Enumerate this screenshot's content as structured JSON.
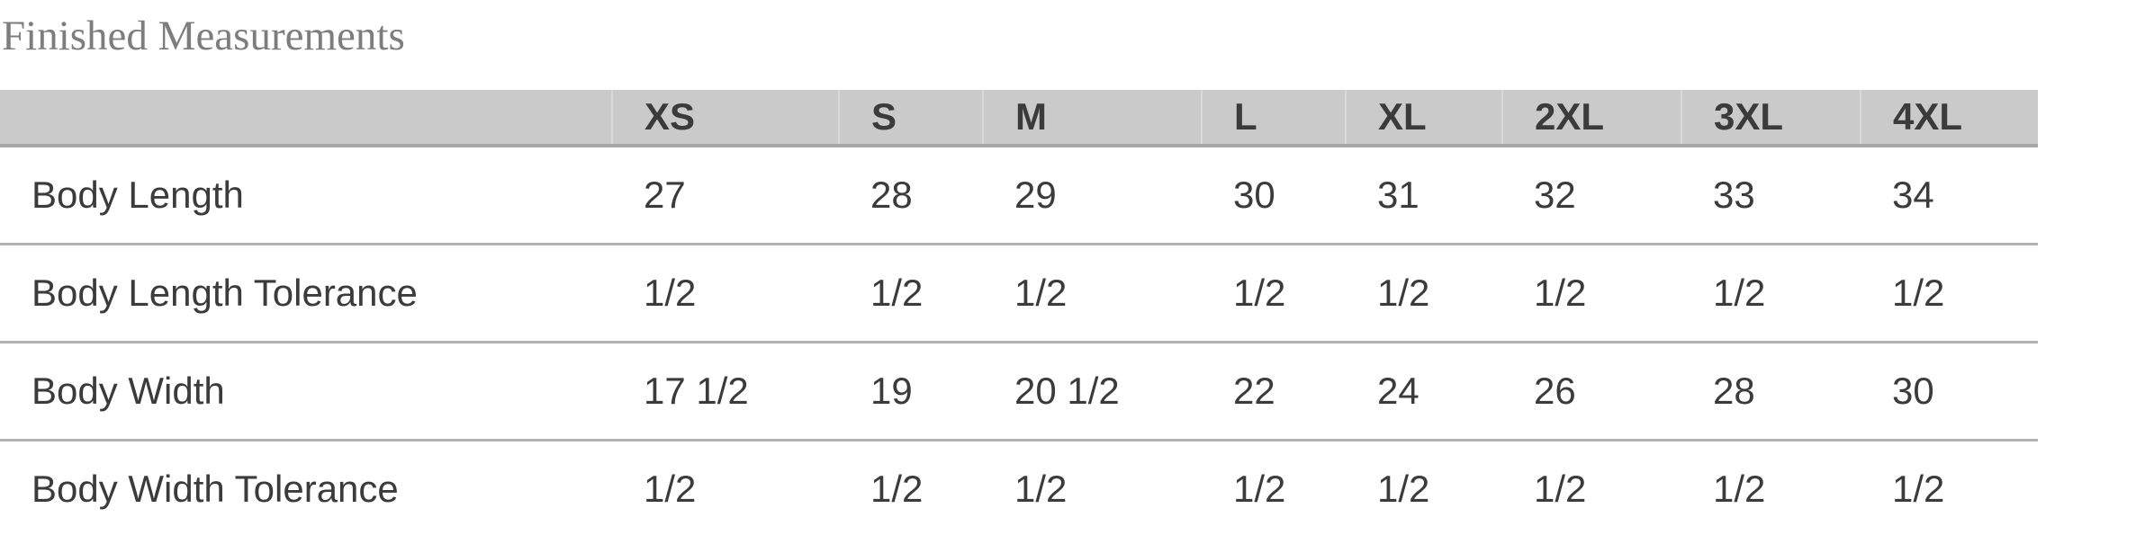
{
  "title": {
    "text": "Finished Measurements"
  },
  "colors": {
    "title_text": "#7d7d7d",
    "header_background": "#cacaca",
    "header_bottom_border": "#a6a6a6",
    "row_divider": "#b1b1b1",
    "table_text": "#3b3b3b",
    "page_background": "#ffffff"
  },
  "chart_data": {
    "type": "table",
    "title": "Finished Measurements",
    "columns": [
      "",
      "XS",
      "S",
      "M",
      "L",
      "XL",
      "2XL",
      "3XL",
      "4XL"
    ],
    "rows": [
      {
        "label": "Body Length",
        "values": [
          "27",
          "28",
          "29",
          "30",
          "31",
          "32",
          "33",
          "34"
        ]
      },
      {
        "label": "Body Length Tolerance",
        "values": [
          "1/2",
          "1/2",
          "1/2",
          "1/2",
          "1/2",
          "1/2",
          "1/2",
          "1/2"
        ]
      },
      {
        "label": "Body Width",
        "values": [
          "17 1/2",
          "19",
          "20 1/2",
          "22",
          "24",
          "26",
          "28",
          "30"
        ]
      },
      {
        "label": "Body Width Tolerance",
        "values": [
          "1/2",
          "1/2",
          "1/2",
          "1/2",
          "1/2",
          "1/2",
          "1/2",
          "1/2"
        ]
      }
    ],
    "layout": {
      "header_row_shaded": true,
      "row_dividers": true,
      "column_dividers_header_only": true,
      "last_row_clipped_at_bottom": true
    }
  }
}
